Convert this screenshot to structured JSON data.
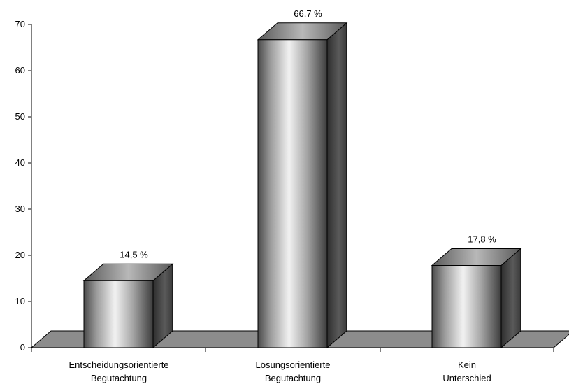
{
  "chart_data": {
    "type": "bar",
    "style": "3d-cylinder-gradient",
    "categories": [
      [
        "Entscheidungsorientierte",
        "Begutachtung"
      ],
      [
        "Lösungsorientierte",
        "Begutachtung"
      ],
      [
        "Kein",
        "Unterschied"
      ]
    ],
    "values": [
      14.5,
      66.7,
      17.8
    ],
    "data_labels": [
      "14,5 %",
      "66,7 %",
      "17,8 %"
    ],
    "ylim": [
      0,
      70
    ],
    "yticks": [
      0,
      10,
      20,
      30,
      40,
      50,
      60,
      70
    ],
    "grid": false,
    "legend": "none",
    "colors": {
      "bar_light": "#f2f2f2",
      "bar_mid": "#9a9a9a",
      "bar_dark": "#3a3a3a",
      "floor": "#8c8c8c",
      "axis": "#000000"
    }
  }
}
